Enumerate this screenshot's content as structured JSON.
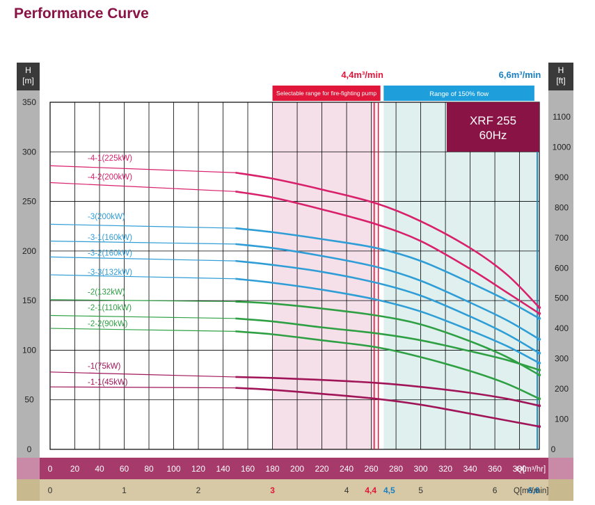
{
  "page": {
    "title": "Performance Curve"
  },
  "colors": {
    "title": "#8a1346",
    "side_bar": "#b3b3b3",
    "header_box": "#3a3a3a",
    "q_axis_bar": "#a63a6b",
    "q_axis_label_bar": "#c98aa8",
    "min_axis_bar": "#d7c9a6",
    "min_axis_label_bar": "#c9b98f",
    "fire_range_fill": "#f5dfe8",
    "fire_range_header": "#e0173a",
    "flow150_fill": "#e0f0ef",
    "flow150_header": "#1e9fdc",
    "model_box": "#8a1346",
    "marker_red": "#e0173a",
    "marker_blue": "#1a7fc0",
    "series_pink": "#d8206b",
    "series_blue": "#2f9dd6",
    "series_green": "#2ea043",
    "series_purple": "#a01458"
  },
  "left_axis": {
    "title_line1": "H",
    "title_line2": "[m]"
  },
  "right_axis": {
    "title_line1": "H",
    "title_line2": "[ft]"
  },
  "model_box": {
    "line1": "XRF 255",
    "line2": "60Hz"
  },
  "markers": {
    "fire_label": "4,4m³/min",
    "flow150_label": "6,6m³/min",
    "fire_range_title": "Selectable range for fire-fighting pump",
    "flow150_range_title": "Range of 150% flow"
  },
  "q_axis": {
    "unit_label": "Q[m³/hr]",
    "ticks": [
      "0",
      "20",
      "40",
      "60",
      "80",
      "100",
      "120",
      "140",
      "160",
      "180",
      "200",
      "220",
      "240",
      "260",
      "280",
      "300",
      "320",
      "340",
      "360",
      "380"
    ]
  },
  "min_axis": {
    "unit_label": "Q[m³/min]",
    "ticks": [
      {
        "label": "0",
        "value": 0,
        "color": "#333333",
        "bold": false
      },
      {
        "label": "1",
        "value": 1,
        "color": "#333333",
        "bold": false
      },
      {
        "label": "2",
        "value": 2,
        "color": "#333333",
        "bold": false
      },
      {
        "label": "3",
        "value": 3,
        "color": "#e0173a",
        "bold": true
      },
      {
        "label": "4",
        "value": 4,
        "color": "#333333",
        "bold": false
      },
      {
        "label": "4,4",
        "value": 4.4,
        "color": "#e0173a",
        "bold": true
      },
      {
        "label": "4,5",
        "value": 4.5,
        "color": "#1a7fc0",
        "bold": true
      },
      {
        "label": "5",
        "value": 5,
        "color": "#333333",
        "bold": false
      },
      {
        "label": "6",
        "value": 6,
        "color": "#333333",
        "bold": false
      },
      {
        "label": "6,6",
        "value": 6.6,
        "color": "#1a7fc0",
        "bold": true
      }
    ]
  },
  "chart_data": {
    "type": "line",
    "xlabel": "Q[m³/hr]",
    "ylabel": "H [m]",
    "y2label": "H [ft]",
    "xlim": [
      0,
      396
    ],
    "ylim": [
      0,
      350
    ],
    "y_ticks": [
      "0",
      "50",
      "100",
      "150",
      "200",
      "250",
      "300",
      "350"
    ],
    "y2_ticks": [
      "100",
      "200",
      "300",
      "400",
      "500",
      "600",
      "700",
      "800",
      "900",
      "1000",
      "1100"
    ],
    "grid": true,
    "fire_range_q": [
      180,
      264
    ],
    "flow150_range_q": [
      270,
      396
    ],
    "series": [
      {
        "name": "-4-1(225kW)",
        "color": "#d8206b",
        "label_h": 294,
        "x": [
          0,
          150,
          180,
          220,
          264,
          300,
          340,
          370,
          396
        ],
        "y": [
          286,
          279,
          273,
          262,
          248,
          230,
          203,
          176,
          143
        ]
      },
      {
        "name": "-4-2(200kW)",
        "color": "#d8206b",
        "label_h": 275,
        "x": [
          0,
          150,
          180,
          220,
          264,
          300,
          340,
          370,
          396
        ],
        "y": [
          269,
          260,
          254,
          242,
          227,
          210,
          182,
          158,
          137
        ]
      },
      {
        "name": "-3(200kW)",
        "color": "#2f9dd6",
        "label_h": 235,
        "x": [
          0,
          150,
          180,
          220,
          264,
          300,
          340,
          370,
          396
        ],
        "y": [
          227,
          223,
          219,
          212,
          203,
          190,
          168,
          150,
          132
        ]
      },
      {
        "name": "-3-1(160kW)",
        "color": "#2f9dd6",
        "label_h": 214,
        "x": [
          0,
          150,
          180,
          220,
          264,
          300,
          340,
          370,
          396
        ],
        "y": [
          210,
          207,
          203,
          195,
          184,
          170,
          148,
          130,
          111
        ]
      },
      {
        "name": "-3-2(160kW)",
        "color": "#2f9dd6",
        "label_h": 198,
        "x": [
          0,
          150,
          180,
          220,
          264,
          300,
          340,
          370,
          396
        ],
        "y": [
          194,
          190,
          186,
          179,
          168,
          155,
          134,
          116,
          97
        ]
      },
      {
        "name": "-3-3(132kW)",
        "color": "#2f9dd6",
        "label_h": 179,
        "x": [
          0,
          150,
          180,
          220,
          264,
          300,
          340,
          370,
          396
        ],
        "y": [
          176,
          172,
          168,
          161,
          151,
          139,
          120,
          104,
          87
        ]
      },
      {
        "name": "-2(132kW)",
        "color": "#2ea043",
        "label_h": 159,
        "x": [
          0,
          150,
          180,
          220,
          264,
          300,
          340,
          370,
          396
        ],
        "y": [
          151,
          149,
          147,
          142,
          135,
          126,
          109,
          93,
          75
        ]
      },
      {
        "name": "-2-1(110kW)",
        "color": "#2ea043",
        "label_h": 143,
        "x": [
          0,
          150,
          180,
          220,
          264,
          300,
          340,
          370,
          396
        ],
        "y": [
          135,
          132,
          129,
          123,
          117,
          110,
          99,
          90,
          80
        ]
      },
      {
        "name": "-2-2(90kW)",
        "color": "#2ea043",
        "label_h": 127,
        "x": [
          0,
          150,
          180,
          220,
          264,
          300,
          340,
          370,
          396
        ],
        "y": [
          122,
          119,
          116,
          110,
          103,
          93,
          79,
          66,
          51
        ]
      },
      {
        "name": "-1(75kW)",
        "color": "#a01458",
        "label_h": 84,
        "x": [
          0,
          150,
          180,
          220,
          264,
          300,
          340,
          370,
          396
        ],
        "y": [
          78,
          73,
          72,
          70,
          67,
          63,
          57,
          51,
          44
        ]
      },
      {
        "name": "-1-1(45kW)",
        "color": "#a01458",
        "label_h": 68,
        "x": [
          0,
          150,
          180,
          220,
          264,
          300,
          340,
          370,
          396
        ],
        "y": [
          63,
          62,
          60,
          56,
          51,
          45,
          36,
          29,
          23
        ]
      }
    ]
  }
}
